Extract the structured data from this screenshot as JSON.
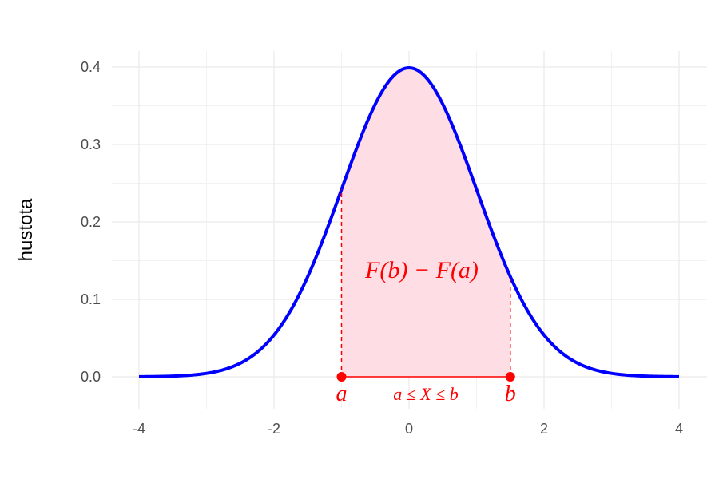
{
  "chart_data": {
    "type": "area",
    "ylabel": "hustota",
    "xlabel": "",
    "xlim": [
      -4,
      4
    ],
    "ylim": [
      0,
      0.4
    ],
    "x_ticks": [
      -4,
      -2,
      0,
      2,
      4
    ],
    "x_tick_labels": [
      "-4",
      "-2",
      "0",
      "2",
      "4"
    ],
    "y_ticks": [
      0,
      0.1,
      0.2,
      0.3,
      0.4
    ],
    "y_tick_labels": [
      "0.0",
      "0.1",
      "0.2",
      "0.3",
      "0.4"
    ],
    "grid": true,
    "curve": {
      "distribution": "standard normal density",
      "mean": 0,
      "sd": 1,
      "color": "#0000ff",
      "x": [
        -4,
        -3.5,
        -3,
        -2.5,
        -2,
        -1.5,
        -1,
        -0.5,
        0,
        0.5,
        1,
        1.5,
        2,
        2.5,
        3,
        3.5,
        4
      ],
      "y": [
        0.0001,
        0.0009,
        0.0044,
        0.0175,
        0.054,
        0.1295,
        0.242,
        0.3521,
        0.3989,
        0.3521,
        0.242,
        0.1295,
        0.054,
        0.0175,
        0.0044,
        0.0009,
        0.0001
      ]
    },
    "shaded_region": {
      "from": -1,
      "to": 1.5,
      "color": "#ffdde4"
    },
    "points": [
      {
        "label": "a",
        "x": -1,
        "y": 0
      },
      {
        "label": "b",
        "x": 1.5,
        "y": 0
      }
    ],
    "annotations": {
      "area_label": "F(b) − F(a)",
      "interval_label": "a ≤ X ≤ b"
    },
    "accent_color": "#ff0000"
  }
}
